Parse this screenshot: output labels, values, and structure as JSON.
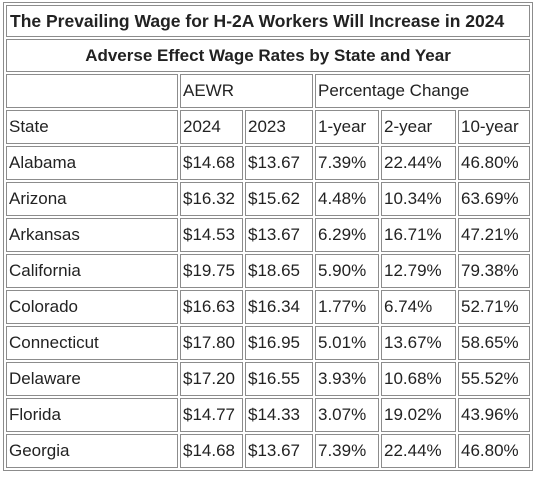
{
  "title": "The Prevailing Wage for H-2A Workers Will Increase in 2024",
  "subtitle": "Adverse Effect Wage Rates by State and Year",
  "group_headers": {
    "aewr": "AEWR",
    "pct": "Percentage Change"
  },
  "col_headers": {
    "state": "State",
    "y2024": "2024",
    "y2023": "2023",
    "one_year": "1-year",
    "two_year": "2-year",
    "ten_year": "10-year"
  },
  "rows": [
    {
      "state": "Alabama",
      "y2024": "$14.68",
      "y2023": "$13.67",
      "one_year": "7.39%",
      "two_year": "22.44%",
      "ten_year": "46.80%"
    },
    {
      "state": "Arizona",
      "y2024": "$16.32",
      "y2023": "$15.62",
      "one_year": "4.48%",
      "two_year": "10.34%",
      "ten_year": "63.69%"
    },
    {
      "state": "Arkansas",
      "y2024": "$14.53",
      "y2023": "$13.67",
      "one_year": "6.29%",
      "two_year": "16.71%",
      "ten_year": "47.21%"
    },
    {
      "state": "California",
      "y2024": "$19.75",
      "y2023": "$18.65",
      "one_year": "5.90%",
      "two_year": "12.79%",
      "ten_year": "79.38%"
    },
    {
      "state": "Colorado",
      "y2024": "$16.63",
      "y2023": "$16.34",
      "one_year": "1.77%",
      "two_year": "6.74%",
      "ten_year": "52.71%"
    },
    {
      "state": "Connecticut",
      "y2024": "$17.80",
      "y2023": "$16.95",
      "one_year": "5.01%",
      "two_year": "13.67%",
      "ten_year": "58.65%"
    },
    {
      "state": "Delaware",
      "y2024": "$17.20",
      "y2023": "$16.55",
      "one_year": "3.93%",
      "two_year": "10.68%",
      "ten_year": "55.52%"
    },
    {
      "state": "Florida",
      "y2024": "$14.77",
      "y2023": "$14.33",
      "one_year": "3.07%",
      "two_year": "19.02%",
      "ten_year": "43.96%"
    },
    {
      "state": "Georgia",
      "y2024": "$14.68",
      "y2023": "$13.67",
      "one_year": "7.39%",
      "two_year": "22.44%",
      "ten_year": "46.80%"
    }
  ]
}
